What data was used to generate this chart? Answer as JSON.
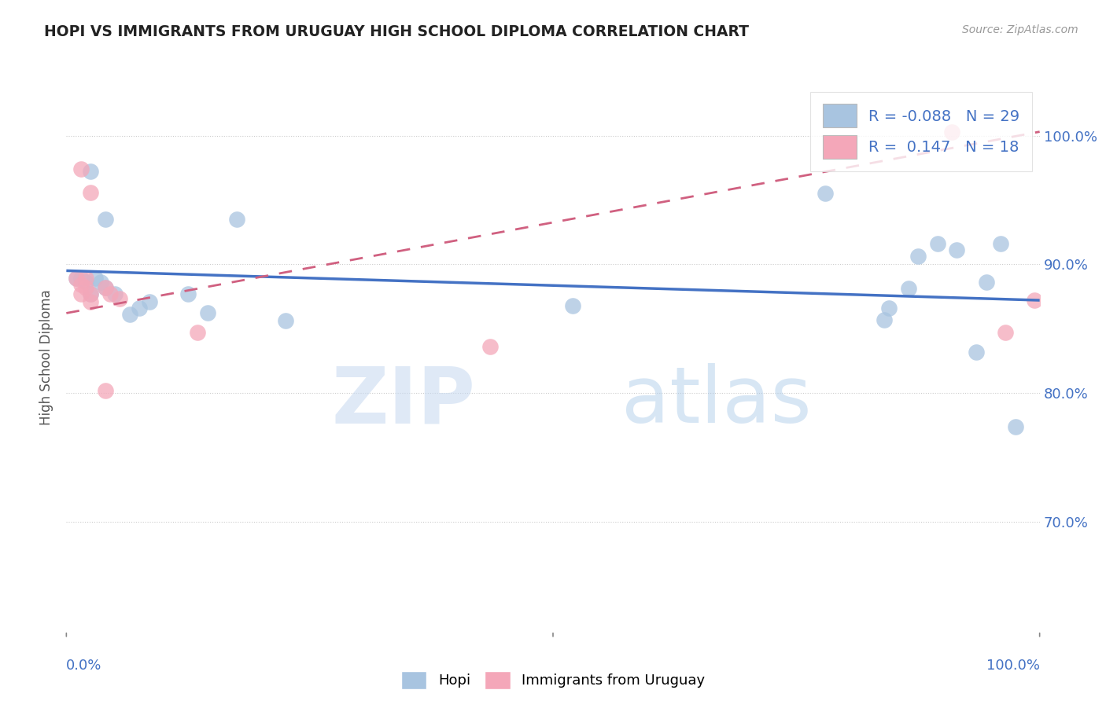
{
  "title": "HOPI VS IMMIGRANTS FROM URUGUAY HIGH SCHOOL DIPLOMA CORRELATION CHART",
  "source": "Source: ZipAtlas.com",
  "ylabel": "High School Diploma",
  "ytick_labels": [
    "100.0%",
    "90.0%",
    "80.0%",
    "70.0%"
  ],
  "ytick_values": [
    1.0,
    0.9,
    0.8,
    0.7
  ],
  "xlim": [
    0.0,
    1.0
  ],
  "ylim": [
    0.615,
    1.04
  ],
  "hopi_color": "#a8c4e0",
  "uruguay_color": "#f4a7b9",
  "hopi_line_color": "#4472c4",
  "uruguay_line_color": "#d06080",
  "watermark_zip": "ZIP",
  "watermark_atlas": "atlas",
  "hopi_x": [
    0.025,
    0.04,
    0.175,
    0.52,
    0.78,
    0.84,
    0.875,
    0.895,
    0.935,
    0.96,
    0.01,
    0.015,
    0.02,
    0.025,
    0.03,
    0.035,
    0.04,
    0.05,
    0.065,
    0.075,
    0.085,
    0.125,
    0.145,
    0.225,
    0.845,
    0.865,
    0.915,
    0.945,
    0.975
  ],
  "hopi_y": [
    0.972,
    0.935,
    0.935,
    0.868,
    0.955,
    0.857,
    0.906,
    0.916,
    0.832,
    0.916,
    0.889,
    0.889,
    0.886,
    0.877,
    0.889,
    0.886,
    0.882,
    0.877,
    0.861,
    0.866,
    0.871,
    0.877,
    0.862,
    0.856,
    0.866,
    0.881,
    0.911,
    0.886,
    0.774
  ],
  "uruguay_x": [
    0.015,
    0.025,
    0.01,
    0.015,
    0.015,
    0.02,
    0.02,
    0.025,
    0.025,
    0.04,
    0.045,
    0.055,
    0.135,
    0.435,
    0.04,
    0.91,
    0.965,
    0.995
  ],
  "uruguay_y": [
    0.974,
    0.956,
    0.889,
    0.884,
    0.877,
    0.889,
    0.882,
    0.877,
    0.871,
    0.882,
    0.877,
    0.873,
    0.847,
    0.836,
    0.802,
    1.003,
    0.847,
    0.872
  ],
  "hopi_trendline_x": [
    0.0,
    1.0
  ],
  "hopi_trendline_y": [
    0.895,
    0.872
  ],
  "uruguay_trendline_x": [
    0.0,
    1.0
  ],
  "uruguay_trendline_y": [
    0.862,
    1.003
  ]
}
